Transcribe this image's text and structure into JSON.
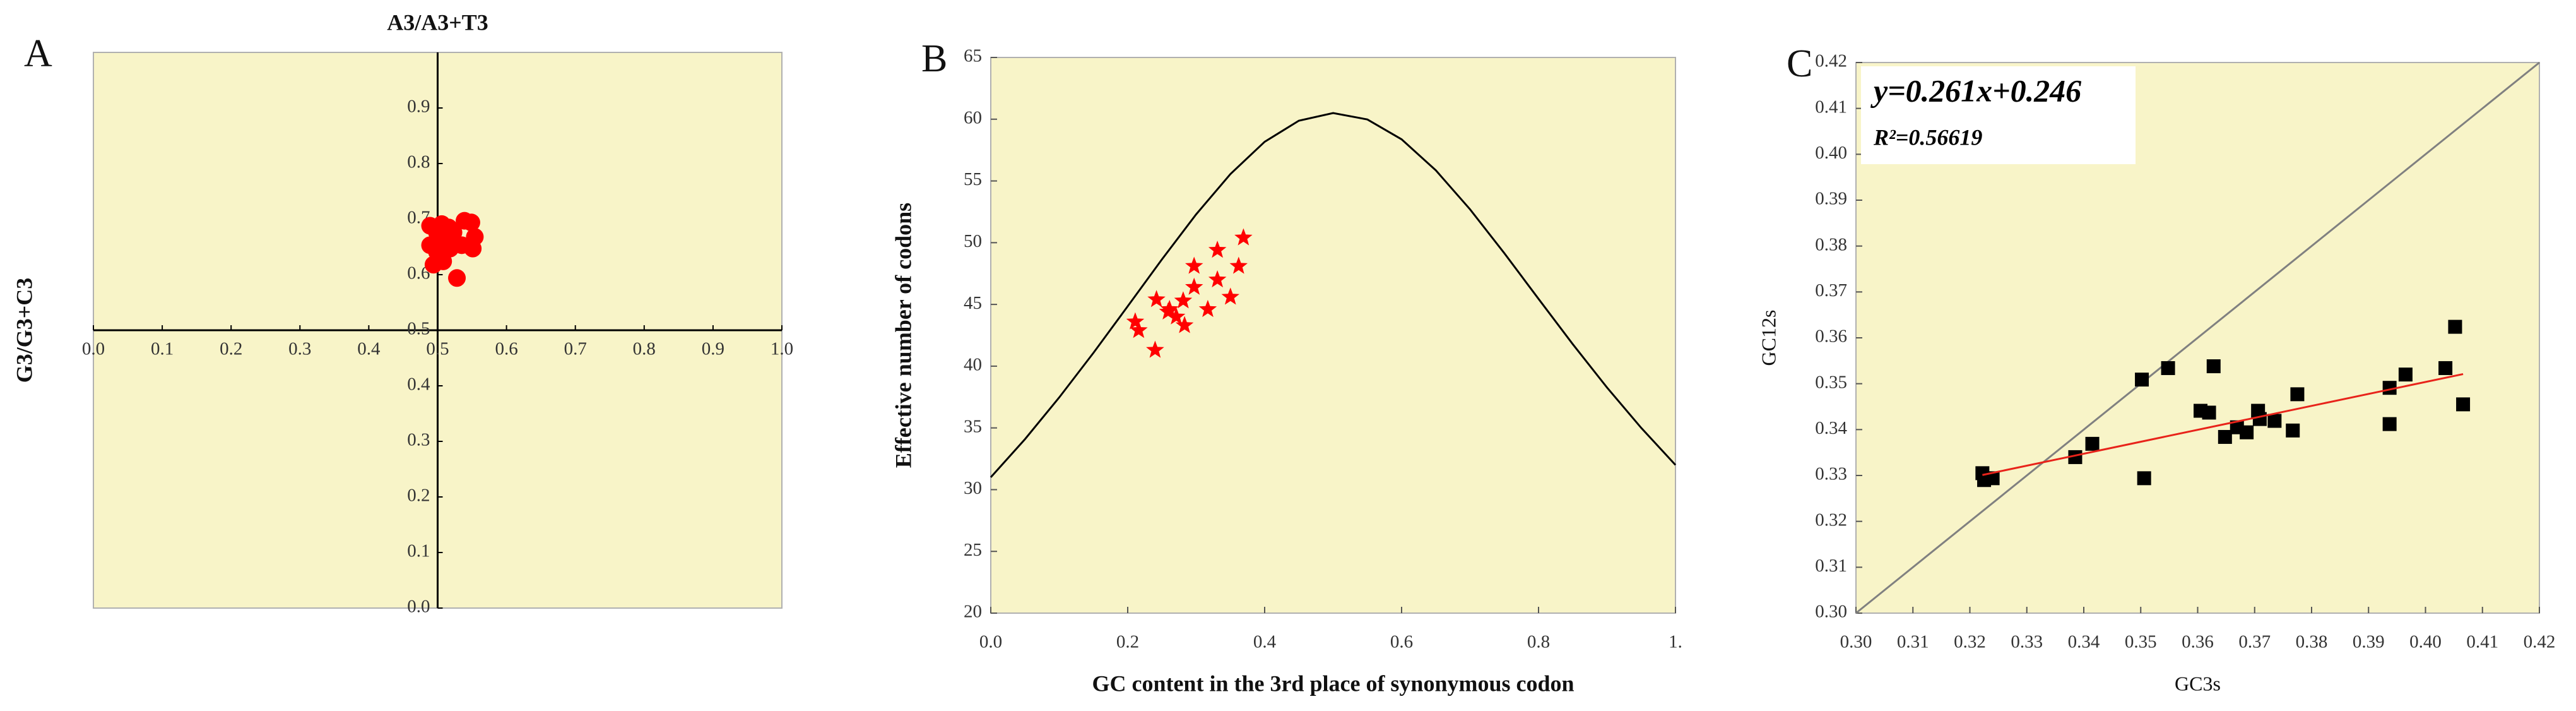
{
  "chart_data": [
    {
      "type": "scatter",
      "panel_label": "A",
      "x_label": "A3/A3+T3",
      "y_label": "G3/G3+C3",
      "xlim": [
        0,
        1
      ],
      "ylim": [
        0,
        1
      ],
      "axes_cross": [
        0.5,
        0.5
      ],
      "plot_background": "#f8f4c8",
      "xticks": [
        {
          "value": 0,
          "label": "0.0"
        },
        0.1,
        0.2,
        0.3,
        0.4,
        0.5,
        0.6,
        0.7,
        0.8,
        0.9,
        {
          "value": 1,
          "label": "1.0"
        }
      ],
      "yticks": [
        {
          "value": 0,
          "label": "0.0"
        },
        0.1,
        0.2,
        0.3,
        0.4,
        0.5,
        0.6,
        0.7,
        0.8,
        0.9
      ],
      "series": [
        {
          "color": "#ff0000",
          "marker": "circle",
          "mode": "markers",
          "x": [
            0.489,
            0.499,
            0.506,
            0.516,
            0.523,
            0.539,
            0.549,
            0.535,
            0.551,
            0.554,
            0.499,
            0.494,
            0.508,
            0.528,
            0.511,
            0.489,
            0.501,
            0.518
          ],
          "values": [
            0.688,
            0.676,
            0.691,
            0.685,
            0.676,
            0.697,
            0.694,
            0.653,
            0.647,
            0.668,
            0.641,
            0.618,
            0.624,
            0.594,
            0.671,
            0.653,
            0.662,
            0.647
          ]
        }
      ]
    },
    {
      "type": "scatter",
      "panel_label": "B",
      "x_label": "GC content in the 3rd place of synonymous codon",
      "y_label": "Effective number of codons",
      "xlim": [
        0,
        1
      ],
      "ylim": [
        20,
        65
      ],
      "plot_background": "#f8f4c8",
      "xticks": [
        {
          "value": 0,
          "label": "0.0"
        },
        0.2,
        0.4,
        0.6,
        0.8,
        {
          "value": 1,
          "label": "1."
        }
      ],
      "yticks": [
        20,
        25,
        30,
        35,
        40,
        45,
        50,
        55,
        60,
        65
      ],
      "series": [
        {
          "color": "#000000",
          "mode": "line",
          "x": [
            0,
            0.05,
            0.1,
            0.15,
            0.2,
            0.25,
            0.3,
            0.35,
            0.4,
            0.45,
            0.5,
            0.55,
            0.6,
            0.65,
            0.7,
            0.75,
            0.8,
            0.85,
            0.9,
            0.95,
            1
          ],
          "values": [
            31,
            34.09,
            37.47,
            41.08,
            44.85,
            48.65,
            52.3,
            55.56,
            58.17,
            59.88,
            60.5,
            59.98,
            58.37,
            55.86,
            52.7,
            49.15,
            45.45,
            41.78,
            38.27,
            35.0,
            32
          ]
        },
        {
          "color": "#ff0000",
          "marker": "star",
          "mode": "markers",
          "x": [
            0.211,
            0.216,
            0.242,
            0.24,
            0.259,
            0.271,
            0.261,
            0.281,
            0.297,
            0.283,
            0.331,
            0.331,
            0.297,
            0.362,
            0.35,
            0.369,
            0.317
          ],
          "values": [
            43.6,
            42.9,
            45.4,
            41.3,
            44.4,
            44.0,
            44.6,
            45.3,
            46.4,
            43.3,
            49.4,
            47.0,
            48.1,
            48.1,
            45.6,
            50.4,
            44.6
          ]
        }
      ]
    },
    {
      "type": "scatter",
      "panel_label": "C",
      "x_label": "GC3s",
      "y_label": "GC12s",
      "annotations": [
        "y=0.261x+0.246",
        "R²=0.56619"
      ],
      "xlim": [
        0.3,
        0.42
      ],
      "ylim": [
        0.3,
        0.42
      ],
      "plot_background": "#f8f4c8",
      "xticks": [
        {
          "value": 0.3,
          "label": "0.30"
        },
        0.31,
        0.32,
        0.33,
        0.34,
        0.35,
        0.36,
        0.37,
        0.38,
        0.39,
        {
          "value": 0.4,
          "label": "0.40"
        },
        0.41,
        0.42
      ],
      "yticks": [
        {
          "value": 0.3,
          "label": "0.30"
        },
        0.31,
        0.32,
        0.33,
        0.34,
        0.35,
        0.36,
        0.37,
        0.38,
        0.39,
        {
          "value": 0.4,
          "label": "0.40"
        },
        0.41,
        0.42
      ],
      "series": [
        {
          "color": "#808080",
          "mode": "line",
          "x": [
            0.3,
            0.42
          ],
          "values": [
            0.3,
            0.42
          ]
        },
        {
          "color": "#000000",
          "marker": "square",
          "mode": "markers",
          "x": [
            0.3222,
            0.3225,
            0.324,
            0.3385,
            0.3415,
            0.3502,
            0.3506,
            0.3548,
            0.3605,
            0.362,
            0.3628,
            0.3648,
            0.3669,
            0.3686,
            0.3706,
            0.3709,
            0.3735,
            0.3767,
            0.3775,
            0.3937,
            0.3937,
            0.3965,
            0.4035,
            0.4052,
            0.4066
          ],
          "values": [
            0.3305,
            0.329,
            0.3294,
            0.334,
            0.3369,
            0.3509,
            0.3294,
            0.3534,
            0.3441,
            0.3437,
            0.3538,
            0.3384,
            0.3405,
            0.3394,
            0.3441,
            0.3423,
            0.3419,
            0.3398,
            0.3477,
            0.3491,
            0.3412,
            0.352,
            0.3534,
            0.3624,
            0.3455
          ]
        },
        {
          "color": "#e8231a",
          "mode": "line",
          "x": [
            0.3222,
            0.4066
          ],
          "values": [
            0.3301,
            0.3521
          ]
        }
      ]
    }
  ]
}
